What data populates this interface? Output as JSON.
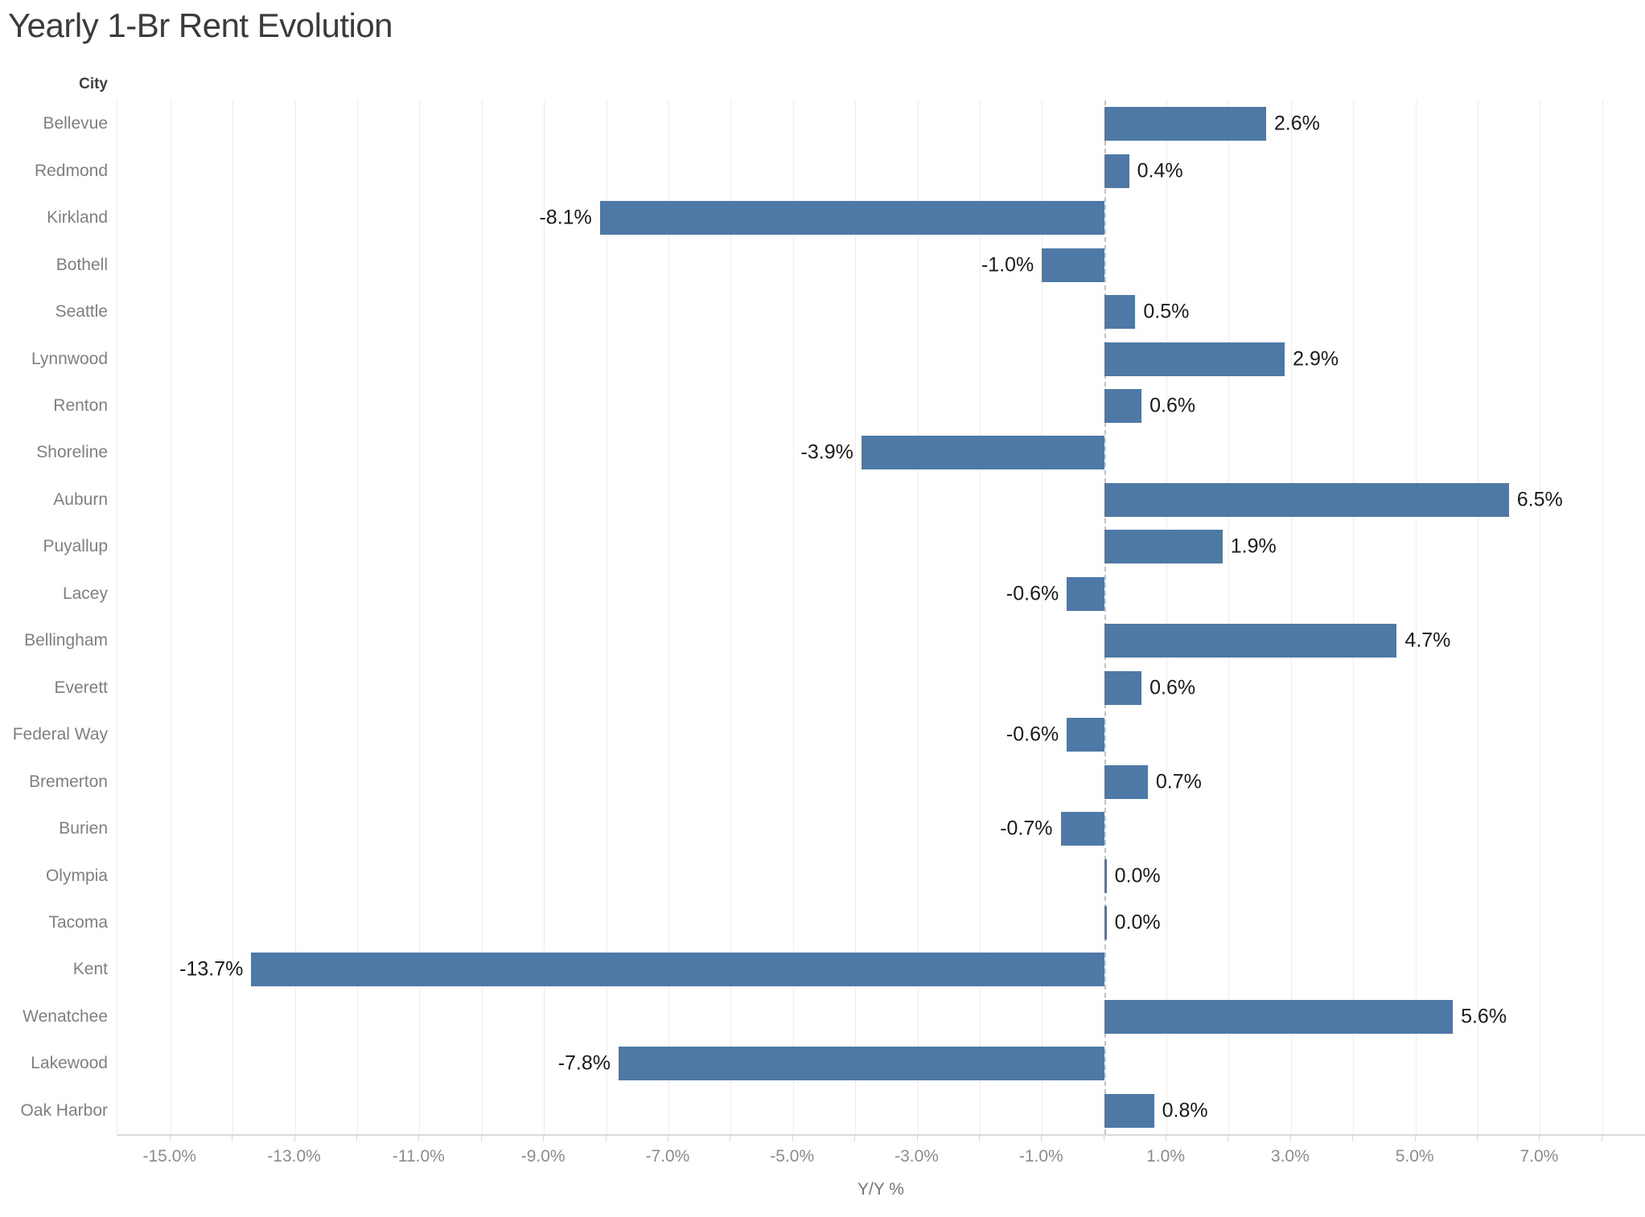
{
  "title": "Yearly 1-Br Rent Evolution",
  "chart_data": {
    "type": "bar",
    "orientation": "horizontal",
    "title": "Yearly 1-Br Rent Evolution",
    "ylabel": "City",
    "xlabel": "Y/Y %",
    "categories": [
      "Bellevue",
      "Redmond",
      "Kirkland",
      "Bothell",
      "Seattle",
      "Lynnwood",
      "Renton",
      "Shoreline",
      "Auburn",
      "Puyallup",
      "Lacey",
      "Bellingham",
      "Everett",
      "Federal Way",
      "Bremerton",
      "Burien",
      "Olympia",
      "Tacoma",
      "Kent",
      "Wenatchee",
      "Lakewood",
      "Oak Harbor"
    ],
    "values": [
      2.6,
      0.4,
      -8.1,
      -1.0,
      0.5,
      2.9,
      0.6,
      -3.9,
      6.5,
      1.9,
      -0.6,
      4.7,
      0.6,
      -0.6,
      0.7,
      -0.7,
      0.0,
      0.0,
      -13.7,
      5.6,
      -7.8,
      0.8
    ],
    "value_labels": [
      "2.6%",
      "0.4%",
      "-8.1%",
      "-1.0%",
      "0.5%",
      "2.9%",
      "0.6%",
      "-3.9%",
      "6.5%",
      "1.9%",
      "-0.6%",
      "4.7%",
      "0.6%",
      "-0.6%",
      "0.7%",
      "-0.7%",
      "0.0%",
      "0.0%",
      "-13.7%",
      "5.6%",
      "-7.8%",
      "0.8%"
    ],
    "xlim": [
      -15.85,
      8.7
    ],
    "grid_step": 1,
    "grid_on": true,
    "zero_line": "dashed",
    "x_ticks": [
      {
        "value": -15,
        "label": "-15.0%"
      },
      {
        "value": -13,
        "label": "-13.0%"
      },
      {
        "value": -11,
        "label": "-11.0%"
      },
      {
        "value": -9,
        "label": "-9.0%"
      },
      {
        "value": -7,
        "label": "-7.0%"
      },
      {
        "value": -5,
        "label": "-5.0%"
      },
      {
        "value": -3,
        "label": "-3.0%"
      },
      {
        "value": -1,
        "label": "-1.0%"
      },
      {
        "value": 1,
        "label": "1.0%"
      },
      {
        "value": 3,
        "label": "3.0%"
      },
      {
        "value": 5,
        "label": "5.0%"
      },
      {
        "value": 7,
        "label": "7.0%"
      }
    ],
    "colors": {
      "bar": "#4e79a7",
      "gridline": "#ececec",
      "zero_line": "#c2c2c2",
      "axis_line": "#d9d9d9",
      "tick_label": "#8c8c8c",
      "category_label": "#7f7f7f",
      "data_label": "#1a1a1a",
      "title": "#3b3b3b",
      "row_header": "#404040",
      "axis_title": "#757575",
      "background": "#ffffff"
    }
  }
}
